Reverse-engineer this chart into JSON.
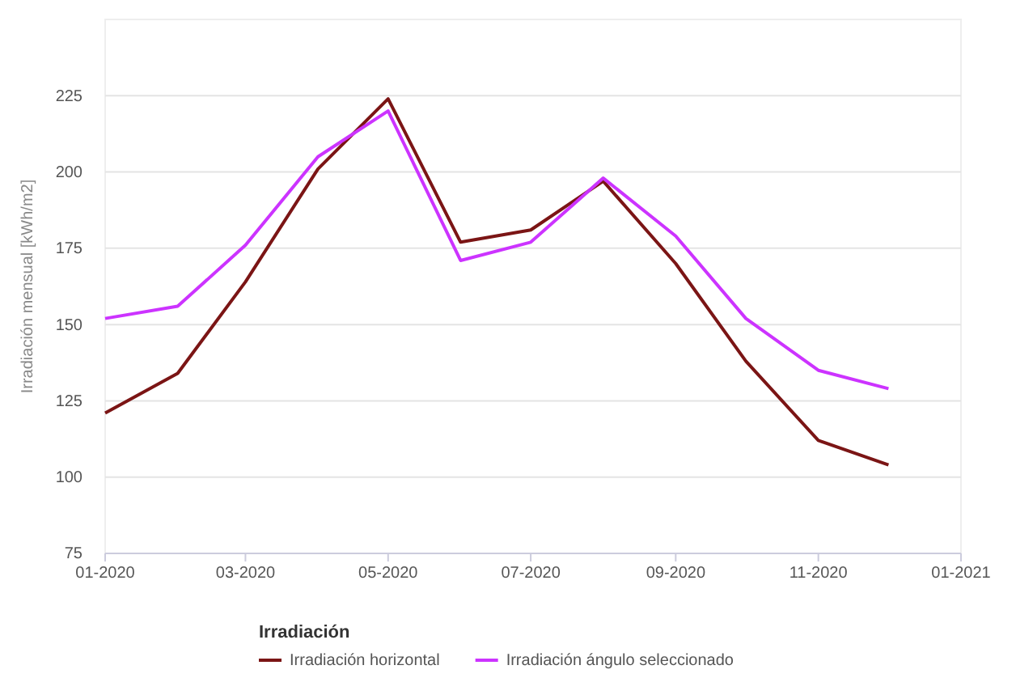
{
  "chart_data": {
    "type": "line",
    "ylabel": "Irradiación mensual [kWh/m2]",
    "legend_title": "Irradiación",
    "x": [
      "2020-01",
      "2020-02",
      "2020-03",
      "2020-04",
      "2020-05",
      "2020-06",
      "2020-07",
      "2020-08",
      "2020-09",
      "2020-10",
      "2020-11",
      "2020-12"
    ],
    "series": [
      {
        "name": "Irradiación horizontal",
        "color": "#7b1515",
        "values": [
          121,
          134,
          164,
          201,
          224,
          177,
          181,
          197,
          170,
          138,
          112,
          104
        ]
      },
      {
        "name": "Irradiación ángulo seleccionado",
        "color": "#cc33ff",
        "values": [
          152,
          156,
          176,
          205,
          220,
          171,
          177,
          198,
          179,
          152,
          135,
          129
        ]
      }
    ],
    "xlim": [
      "2020-01",
      "2021-01"
    ],
    "xticks": [
      {
        "value": "2020-01",
        "label": "01-2020"
      },
      {
        "value": "2020-03",
        "label": "03-2020"
      },
      {
        "value": "2020-05",
        "label": "05-2020"
      },
      {
        "value": "2020-07",
        "label": "07-2020"
      },
      {
        "value": "2020-09",
        "label": "09-2020"
      },
      {
        "value": "2020-11",
        "label": "11-2020"
      },
      {
        "value": "2021-01",
        "label": "01-2021"
      }
    ],
    "ylim": [
      75,
      250
    ],
    "yticks": [
      75,
      100,
      125,
      150,
      175,
      200,
      225
    ],
    "grid": "y",
    "legend": "bottom",
    "line_style": "solid",
    "marker": "none"
  }
}
